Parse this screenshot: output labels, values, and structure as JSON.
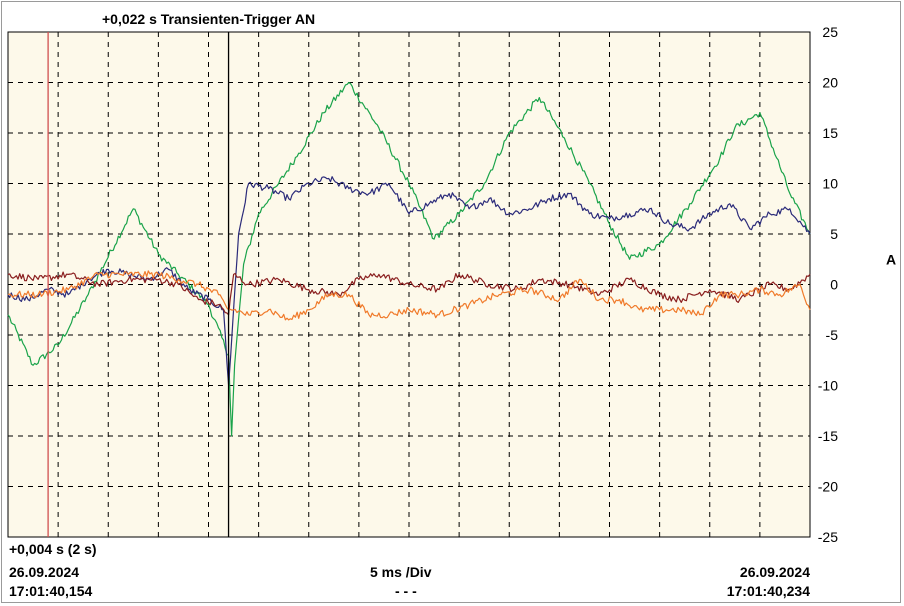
{
  "header": {
    "trigger_text": "+0,022 s Transienten-Trigger AN"
  },
  "footer": {
    "cursor_text": "+0,004 s (2 s)",
    "start_date": "26.09.2024",
    "start_time": "17:01:40,154",
    "timebase": "5 ms /Div",
    "center_dashes": "- - -",
    "end_date": "26.09.2024",
    "end_time": "17:01:40,234"
  },
  "colors": {
    "plot_background": "#fdf9ea",
    "grid": "#000000",
    "cursor_red": "#d05050",
    "cursor_black": "#000000",
    "green": "#1aa34a",
    "navy": "#2b2b7a",
    "maroon": "#8a1f1f",
    "orange": "#f07a2a"
  },
  "chart_data": {
    "type": "line",
    "title": "",
    "xlabel": "",
    "ylabel": "A",
    "xlim": [
      0,
      80
    ],
    "x_unit": "ms",
    "ylim": [
      -25,
      25
    ],
    "yticks": [
      25,
      20,
      15,
      10,
      5,
      0,
      -5,
      -10,
      -15,
      -20,
      -25
    ],
    "grid": true,
    "x_divisions": 16,
    "cursors": [
      {
        "x": 4,
        "color": "red"
      },
      {
        "x": 22,
        "color": "black"
      }
    ],
    "series": [
      {
        "color": "green",
        "x": [
          0,
          2.5,
          5,
          8,
          12.5,
          15,
          17,
          20,
          22,
          22.3,
          22.6,
          23.5,
          25,
          27,
          29,
          31.5,
          34,
          37,
          40,
          42.5,
          45,
          47.5,
          50,
          53,
          55.5,
          58,
          60,
          62,
          65,
          68,
          71,
          72.5,
          75,
          78,
          80
        ],
        "y": [
          -3,
          -8,
          -6,
          -1,
          7.5,
          3,
          1,
          -2,
          -7,
          -15,
          -8,
          2,
          7,
          10,
          13,
          17,
          20,
          15.5,
          10,
          4.5,
          7,
          10,
          15,
          18.5,
          14.5,
          10,
          6,
          2.5,
          4,
          8,
          12.5,
          15.5,
          17,
          9,
          5
        ]
      },
      {
        "color": "navy",
        "x": [
          0,
          2,
          4,
          6,
          8,
          10,
          12,
          14,
          16,
          18,
          20,
          21.5,
          22,
          22.4,
          23,
          24,
          26,
          28,
          30,
          32,
          34,
          36,
          38,
          40,
          42,
          44,
          46,
          48,
          50,
          52,
          54,
          56,
          58,
          60,
          62,
          64,
          66,
          68,
          70,
          72,
          74,
          76,
          78,
          80
        ],
        "y": [
          -1,
          -1.5,
          -0.5,
          -1,
          0.5,
          1.5,
          1,
          0.5,
          1.5,
          -0.5,
          -1.5,
          -2.5,
          -10,
          -4,
          5,
          10,
          9.5,
          8.5,
          10,
          10.5,
          9.5,
          9,
          10,
          7,
          8,
          9,
          7.5,
          8.5,
          7,
          7.5,
          8.5,
          9,
          7,
          6.5,
          7,
          7.5,
          6,
          5.5,
          7,
          8,
          5.5,
          7,
          7.5,
          5
        ]
      },
      {
        "color": "maroon",
        "x": [
          0,
          3,
          6,
          9,
          12,
          15,
          17,
          19,
          21,
          22,
          22.5,
          24,
          27,
          30,
          33,
          35,
          37,
          40,
          43,
          45,
          48,
          51,
          53,
          56,
          59,
          62,
          65,
          67,
          70,
          73,
          76,
          78,
          80
        ],
        "y": [
          1,
          0.5,
          1,
          0,
          0.5,
          0.5,
          0,
          -1.5,
          -2,
          -3,
          1,
          0,
          0.5,
          -0.5,
          -1,
          0.5,
          1,
          0,
          -0.5,
          1,
          0,
          -0.5,
          0.5,
          0,
          -1,
          0.5,
          -1,
          -1.5,
          -0.5,
          -1.5,
          0,
          -0.5,
          1
        ]
      },
      {
        "color": "orange",
        "x": [
          0,
          3,
          6,
          9,
          12,
          15,
          17,
          19,
          21,
          22,
          22.5,
          24,
          26,
          28,
          30,
          32,
          34,
          36,
          38,
          40,
          43,
          46,
          49,
          52,
          55,
          57,
          59,
          61,
          63,
          65,
          67,
          69,
          71,
          73,
          75,
          77,
          79,
          80
        ],
        "y": [
          -1,
          -1,
          -0.5,
          1,
          1,
          1,
          0.5,
          0,
          -1,
          -2.5,
          -2.5,
          -3,
          -2.5,
          -3.5,
          -2.5,
          -1,
          -1,
          -3,
          -3,
          -2.5,
          -3,
          -2,
          -1,
          -0.5,
          -1.5,
          0.5,
          -1.5,
          -1.5,
          -2.5,
          -2.5,
          -2.5,
          -3,
          -1,
          -1,
          -0.5,
          -1,
          0,
          -2.5
        ]
      }
    ]
  }
}
